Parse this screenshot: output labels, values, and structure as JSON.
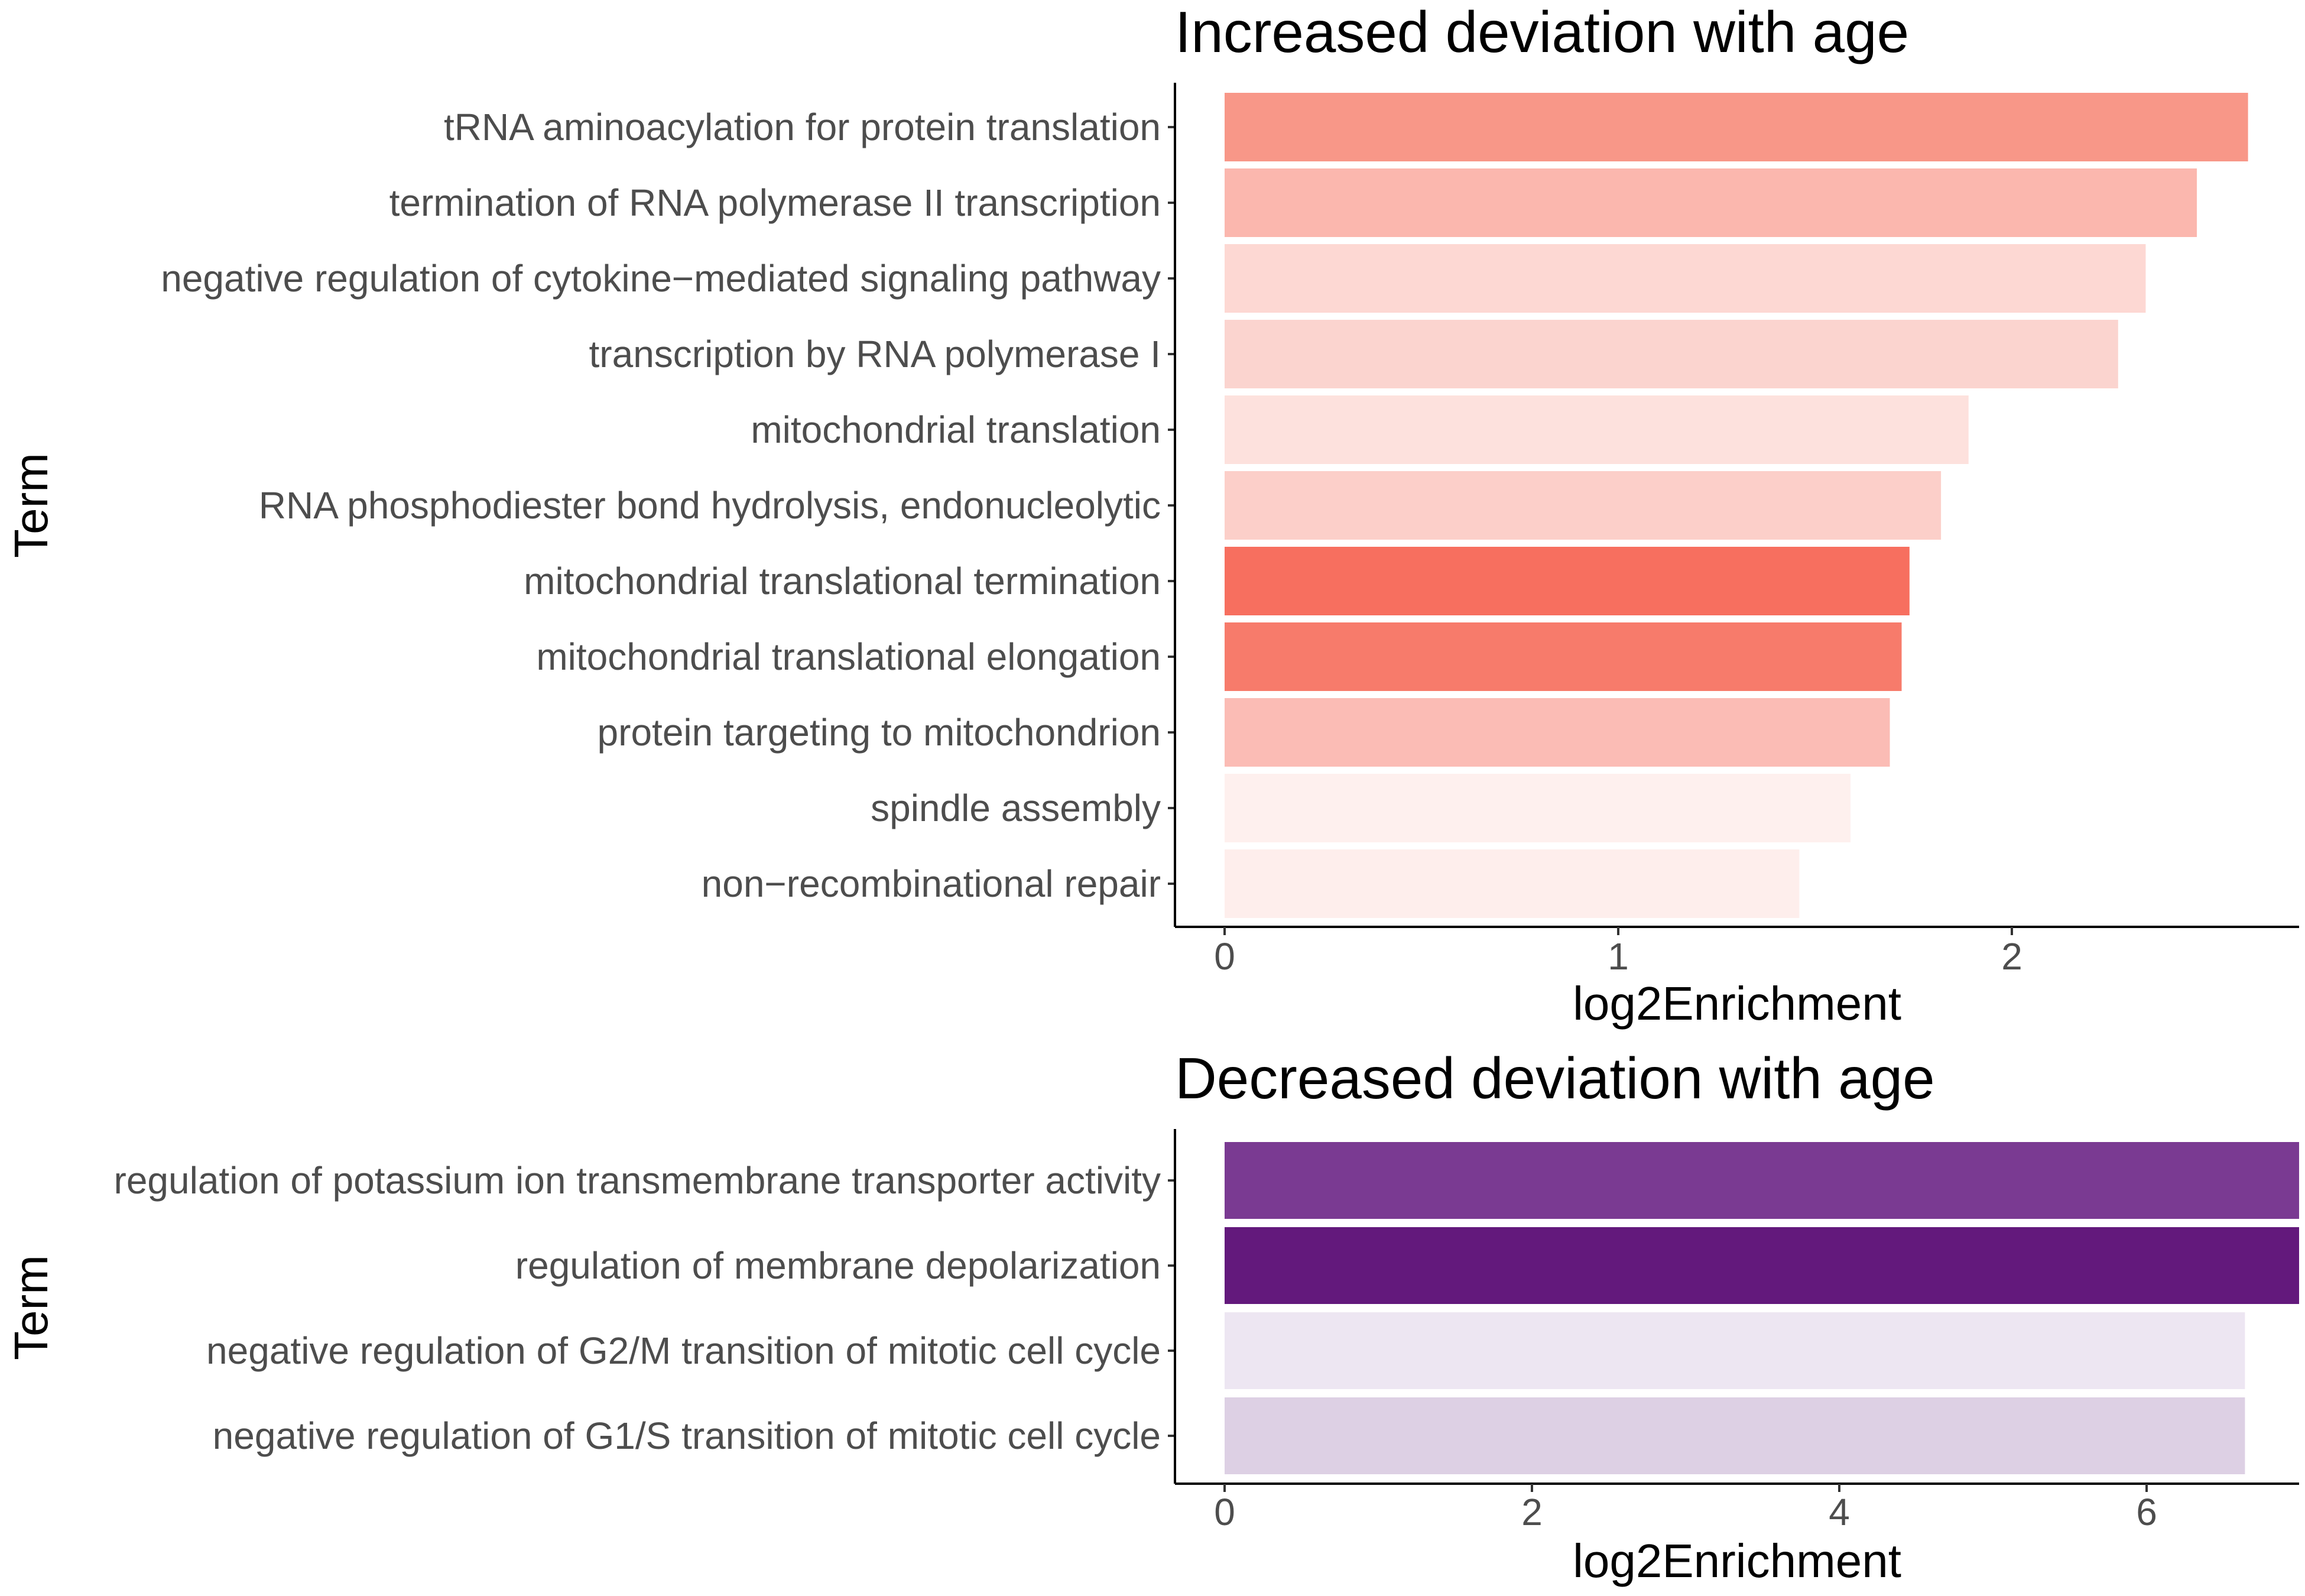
{
  "chart_data": [
    {
      "type": "bar",
      "orientation": "horizontal",
      "title": "Increased deviation with age",
      "xlabel": "log2Enrichment",
      "ylabel": "Term",
      "xlim": [
        0,
        2.73
      ],
      "xticks": [
        0,
        1,
        2
      ],
      "grid": false,
      "categories": [
        "tRNA aminoacylation for protein translation",
        "termination of RNA polymerase II transcription",
        "negative regulation of cytokine−mediated signaling pathway",
        "transcription by RNA polymerase I",
        "mitochondrial translation",
        "RNA phosphodiester bond hydrolysis, endonucleolytic",
        "mitochondrial translational termination",
        "mitochondrial translational elongation",
        "protein targeting to mitochondrion",
        "spindle assembly",
        "non−recombinational repair"
      ],
      "values": [
        2.6,
        2.47,
        2.34,
        2.27,
        1.89,
        1.82,
        1.74,
        1.72,
        1.69,
        1.59,
        1.46
      ],
      "colors": [
        "#f89788",
        "#fbb7ae",
        "#fdd8d3",
        "#fbd4cf",
        "#fde1dd",
        "#fccfc9",
        "#f76f5f",
        "#f77b6b",
        "#fbbcb5",
        "#fef0ee",
        "#feeeec"
      ]
    },
    {
      "type": "bar",
      "orientation": "horizontal",
      "title": "Decreased deviation with age",
      "xlabel": "log2Enrichment",
      "ylabel": "Term",
      "xlim": [
        0,
        7.0
      ],
      "xticks": [
        0,
        2,
        4,
        6
      ],
      "grid": false,
      "categories": [
        "regulation of potassium ion transmembrane transporter activity",
        "regulation of membrane depolarization",
        "negative regulation of G2/M transition of mitotic cell cycle",
        "negative regulation of G1/S transition of mitotic cell cycle"
      ],
      "values": [
        7.0,
        7.0,
        6.64,
        6.64
      ],
      "colors": [
        "#7a3a92",
        "#63197c",
        "#ede6f2",
        "#ddd0e4"
      ]
    }
  ]
}
